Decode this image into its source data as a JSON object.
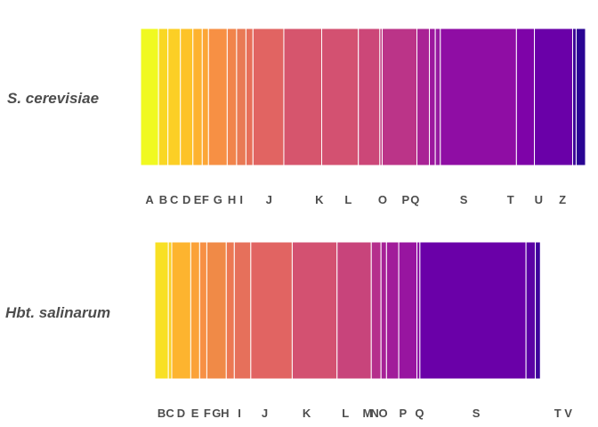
{
  "chart_data": [
    {
      "type": "bar",
      "orientation": "stacked-horizontal-100",
      "organism": "S. cerevisiae",
      "categories": [
        "A",
        "B",
        "C",
        "D",
        "E",
        "F",
        "G",
        "H",
        "I",
        "?",
        "J",
        "?",
        "K",
        "L",
        "?",
        "O",
        "P",
        "Q",
        "?",
        "S",
        "T",
        "U",
        "?",
        "Z"
      ],
      "values": [
        4.6,
        2.4,
        3.2,
        3.2,
        2.4,
        1.6,
        4.8,
        2.4,
        2.4,
        1.8,
        7.9,
        9.7,
        9.4,
        5.5,
        0.6,
        8.9,
        3.2,
        1.5,
        1.3,
        19.5,
        4.6,
        9.8,
        0.9,
        2.4
      ],
      "colors": [
        "#f0f921",
        "#f9d724",
        "#fccf25",
        "#fdc328",
        "#fdb22f",
        "#fca636",
        "#f79044",
        "#f1844b",
        "#e97a55",
        "#e76f5a",
        "#e16462",
        "#d6556d",
        "#d35171",
        "#cc4778",
        "#c13b82",
        "#bb3488",
        "#a92395",
        "#9c179e",
        "#961ba0",
        "#8f0da4",
        "#7e03a8",
        "#6a00a8",
        "#3c0198",
        "#2a0593"
      ],
      "axis_labels": [
        "A",
        "B",
        "C",
        "D",
        "E",
        "F",
        "G",
        "H",
        "I",
        "J",
        "K",
        "L",
        "O",
        "P",
        "Q",
        "S",
        "T",
        "U",
        "Z"
      ],
      "axis_label_positions": [
        2.3,
        5.8,
        8.6,
        11.8,
        14.6,
        16.6,
        19.8,
        23.4,
        25.8,
        32.9,
        45.8,
        53.2,
        62.0,
        67.9,
        70.3,
        82.8,
        94.8,
        102.0,
        108.1
      ],
      "xlim": [
        0,
        109.9
      ]
    },
    {
      "type": "bar",
      "orientation": "stacked-horizontal-100",
      "organism": "Hbt. salinarum",
      "categories": [
        "B",
        "C",
        "D",
        "E",
        "F",
        "G",
        "H",
        "I",
        "J",
        "K",
        "L",
        "M",
        "N",
        "O",
        "P",
        "Q",
        "S",
        "T",
        "V"
      ],
      "values": [
        3.2,
        0.8,
        4.5,
        2.1,
        1.7,
        4.6,
        1.9,
        3.9,
        9.8,
        10.6,
        8.1,
        2.3,
        1.3,
        2.9,
        4.3,
        0.7,
        25.1,
        2.2,
        1.2
      ],
      "colors": [
        "#f8e024",
        "#fad024",
        "#fdb42f",
        "#fba238",
        "#f79044",
        "#f08a47",
        "#ec7853",
        "#e6705b",
        "#e16462",
        "#d35171",
        "#c8447b",
        "#b52f8c",
        "#a62196",
        "#a11c9a",
        "#9815a0",
        "#8a09a5",
        "#6a00a8",
        "#5b01a5",
        "#3e049c"
      ],
      "axis_labels": [
        "B",
        "C",
        "D",
        "E",
        "F",
        "G",
        "H",
        "I",
        "J",
        "K",
        "L",
        "M",
        "N",
        "O",
        "P",
        "Q",
        "S",
        "T",
        "V"
      ],
      "axis_label_positions": [
        1.6,
        3.6,
        6.2,
        9.5,
        12.4,
        14.6,
        16.6,
        20.0,
        26.0,
        35.9,
        45.1,
        50.3,
        52.0,
        54.0,
        58.7,
        62.6,
        76.0,
        95.3,
        97.8
      ],
      "xlim": [
        0,
        98.3
      ]
    }
  ]
}
